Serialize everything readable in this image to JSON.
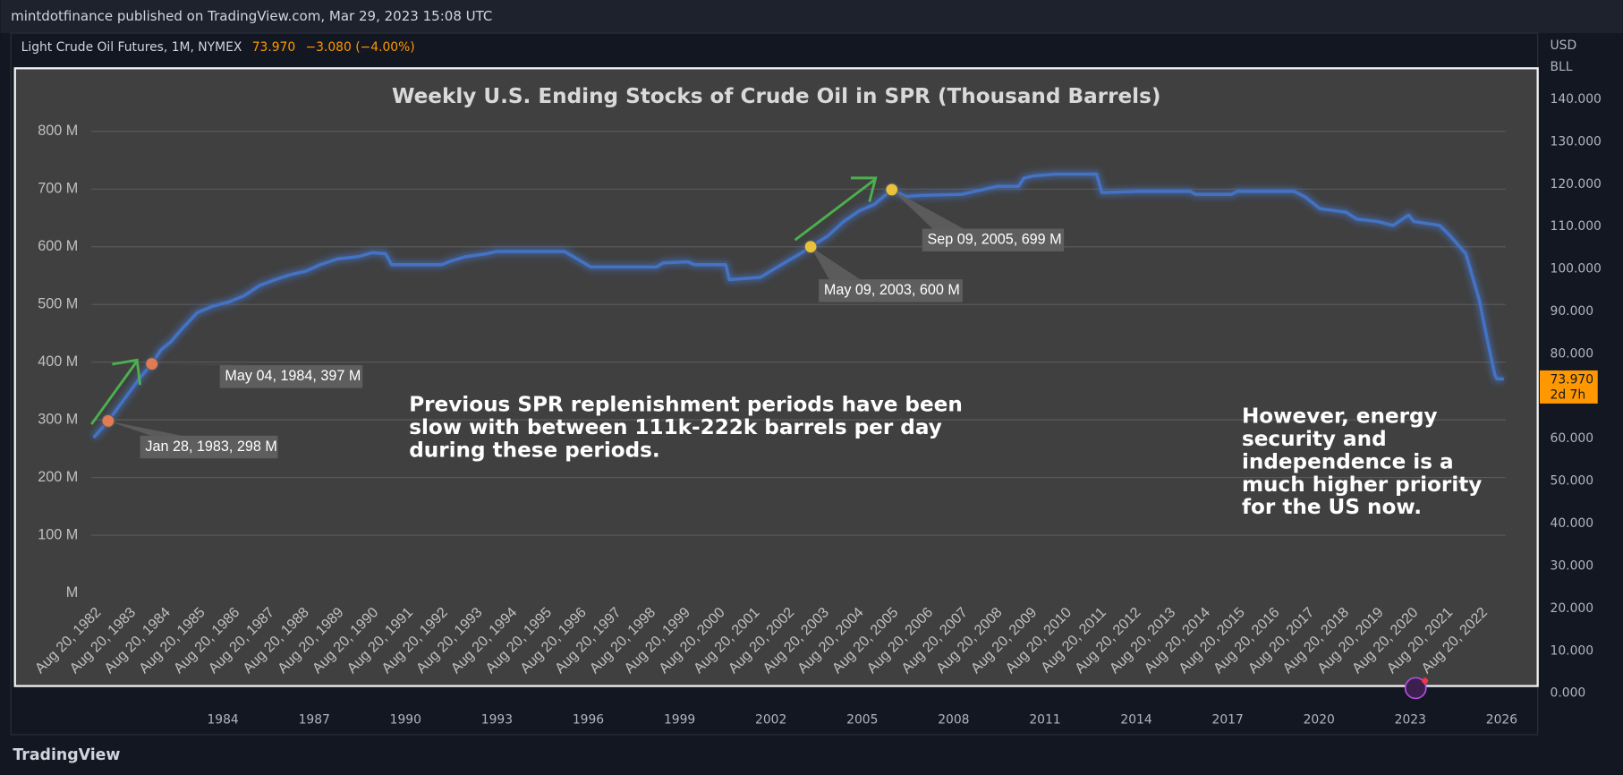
{
  "header": {
    "publisher": "mintdotfinance published on TradingView.com, Mar 29, 2023 15:08 UTC",
    "symbol": "Light Crude Oil Futures, 1M, NYMEX",
    "price": "73.970",
    "change": "−3.080 (−4.00%)",
    "brand": "TradingView"
  },
  "price_axis": {
    "currency": "USD",
    "unit": "BLL",
    "labels": [
      "140.000",
      "130.000",
      "120.000",
      "110.000",
      "100.000",
      "90.000",
      "80.000",
      "60.000",
      "50.000",
      "40.000",
      "30.000",
      "20.000",
      "10.000",
      "0.000"
    ],
    "badge": [
      "73.970",
      "2d 7h"
    ]
  },
  "time_axis": {
    "labels": [
      "1984",
      "1987",
      "1990",
      "1993",
      "1996",
      "1999",
      "2002",
      "2005",
      "2008",
      "2011",
      "2014",
      "2017",
      "2020",
      "2023",
      "2026"
    ]
  },
  "chart_data": {
    "type": "line",
    "title": "Weekly U.S. Ending Stocks of Crude Oil in SPR  (Thousand Barrels)",
    "color": "#4472c4",
    "x": [
      1982.66,
      1983.08,
      1983.56,
      1984.0,
      1984.34,
      1984.6,
      1984.9,
      1985.2,
      1985.65,
      1986.1,
      1986.55,
      1987.0,
      1987.45,
      1987.9,
      1988.3,
      1988.8,
      1989.2,
      1989.7,
      1990.3,
      1990.7,
      1991.08,
      1991.26,
      1991.8,
      1992.7,
      1993.0,
      1993.4,
      1994.0,
      1994.3,
      1996.25,
      1996.5,
      1997.0,
      1997.9,
      1998.9,
      1999.1,
      1999.8,
      2000.0,
      2000.9,
      2001.0,
      2001.9,
      2002.2,
      2002.7,
      2003.1,
      2003.35,
      2003.85,
      2004.3,
      2004.75,
      2005.2,
      2005.69,
      2006.1,
      2006.5,
      2007.7,
      2008.45,
      2008.75,
      2009.35,
      2009.5,
      2009.8,
      2010.4,
      2011.6,
      2011.75,
      2012.8,
      2014.3,
      2014.45,
      2015.5,
      2015.65,
      2017.3,
      2017.6,
      2018.05,
      2018.8,
      2019.1,
      2019.7,
      2020.15,
      2020.6,
      2020.75,
      2021.5,
      2021.8,
      2022.25,
      2022.64,
      2022.88,
      2023.09,
      2023.15,
      2023.35
    ],
    "values": [
      269,
      298,
      337,
      373,
      397,
      421,
      436,
      457,
      486,
      497,
      504,
      515,
      533,
      543,
      551,
      558,
      569,
      579,
      583,
      590,
      588,
      569,
      569,
      569,
      576,
      583,
      588,
      592,
      592,
      583,
      565,
      565,
      565,
      572,
      574,
      569,
      569,
      543,
      547,
      558,
      576,
      590,
      600,
      619,
      644,
      662,
      674,
      699,
      687,
      689,
      691,
      701,
      705,
      705,
      719,
      723,
      726,
      726,
      694,
      696,
      696,
      691,
      691,
      696,
      696,
      687,
      666,
      660,
      648,
      644,
      637,
      655,
      644,
      637,
      619,
      588,
      508,
      436,
      378,
      371,
      371
    ],
    "xlim": [
      1982.6,
      2023.4
    ],
    "xticks": [
      {
        "value": 1982.635,
        "label": "Aug 20, 1982"
      },
      {
        "value": 1983.635,
        "label": "Aug 20, 1983"
      },
      {
        "value": 1984.635,
        "label": "Aug 20, 1984"
      },
      {
        "value": 1985.635,
        "label": "Aug 20, 1985"
      },
      {
        "value": 1986.635,
        "label": "Aug 20, 1986"
      },
      {
        "value": 1987.635,
        "label": "Aug 20, 1987"
      },
      {
        "value": 1988.635,
        "label": "Aug 20, 1988"
      },
      {
        "value": 1989.635,
        "label": "Aug 20, 1989"
      },
      {
        "value": 1990.635,
        "label": "Aug 20, 1990"
      },
      {
        "value": 1991.635,
        "label": "Aug 20, 1991"
      },
      {
        "value": 1992.635,
        "label": "Aug 20, 1992"
      },
      {
        "value": 1993.635,
        "label": "Aug 20, 1993"
      },
      {
        "value": 1994.635,
        "label": "Aug 20, 1994"
      },
      {
        "value": 1995.635,
        "label": "Aug 20, 1995"
      },
      {
        "value": 1996.635,
        "label": "Aug 20, 1996"
      },
      {
        "value": 1997.635,
        "label": "Aug 20, 1997"
      },
      {
        "value": 1998.635,
        "label": "Aug 20, 1998"
      },
      {
        "value": 1999.635,
        "label": "Aug 20, 1999"
      },
      {
        "value": 2000.635,
        "label": "Aug 20, 2000"
      },
      {
        "value": 2001.635,
        "label": "Aug 20, 2001"
      },
      {
        "value": 2002.635,
        "label": "Aug 20, 2002"
      },
      {
        "value": 2003.635,
        "label": "Aug 20, 2003"
      },
      {
        "value": 2004.635,
        "label": "Aug 20, 2004"
      },
      {
        "value": 2005.635,
        "label": "Aug 20, 2005"
      },
      {
        "value": 2006.635,
        "label": "Aug 20, 2006"
      },
      {
        "value": 2007.635,
        "label": "Aug 20, 2007"
      },
      {
        "value": 2008.635,
        "label": "Aug 20, 2008"
      },
      {
        "value": 2009.635,
        "label": "Aug 20, 2009"
      },
      {
        "value": 2010.635,
        "label": "Aug 20, 2010"
      },
      {
        "value": 2011.635,
        "label": "Aug 20, 2011"
      },
      {
        "value": 2012.635,
        "label": "Aug 20, 2012"
      },
      {
        "value": 2013.635,
        "label": "Aug 20, 2013"
      },
      {
        "value": 2014.635,
        "label": "Aug 20, 2014"
      },
      {
        "value": 2015.635,
        "label": "Aug 20, 2015"
      },
      {
        "value": 2016.635,
        "label": "Aug 20, 2016"
      },
      {
        "value": 2017.635,
        "label": "Aug 20, 2017"
      },
      {
        "value": 2018.635,
        "label": "Aug 20, 2018"
      },
      {
        "value": 2019.635,
        "label": "Aug 20, 2019"
      },
      {
        "value": 2020.635,
        "label": "Aug 20, 2020"
      },
      {
        "value": 2021.635,
        "label": "Aug 20, 2021"
      },
      {
        "value": 2022.635,
        "label": "Aug 20, 2022"
      }
    ],
    "ylim": [
      0,
      800
    ],
    "yticks": [
      {
        "value": 0,
        "label": "M"
      },
      {
        "value": 100,
        "label": "100 M"
      },
      {
        "value": 200,
        "label": "200 M"
      },
      {
        "value": 300,
        "label": "300 M"
      },
      {
        "value": 400,
        "label": "400 M"
      },
      {
        "value": 500,
        "label": "500 M"
      },
      {
        "value": 600,
        "label": "600 M"
      },
      {
        "value": 700,
        "label": "700 M"
      },
      {
        "value": 800,
        "label": "800 M"
      }
    ],
    "grid": true,
    "annotations": [
      {
        "label": "Jan 28, 1983, 298 M",
        "x": 1983.08,
        "y": 298,
        "color": "#e07b53"
      },
      {
        "label": "May 04, 1984, 397 M",
        "x": 1984.34,
        "y": 397,
        "color": "#e07b53"
      },
      {
        "label": "May 09, 2003, 600 M",
        "x": 2003.35,
        "y": 600,
        "color": "#e8c23a"
      },
      {
        "label": "Sep 09, 2005, 699 M",
        "x": 2005.69,
        "y": 699,
        "color": "#e8c23a"
      }
    ],
    "notes": [
      {
        "lines": [
          "Previous SPR replenishment periods have been",
          "slow with between 111k-222k barrels per day",
          "during these periods."
        ]
      },
      {
        "lines": [
          "However, energy",
          "security and",
          "independence is a",
          "much higher priority",
          "for the US now."
        ]
      }
    ]
  }
}
